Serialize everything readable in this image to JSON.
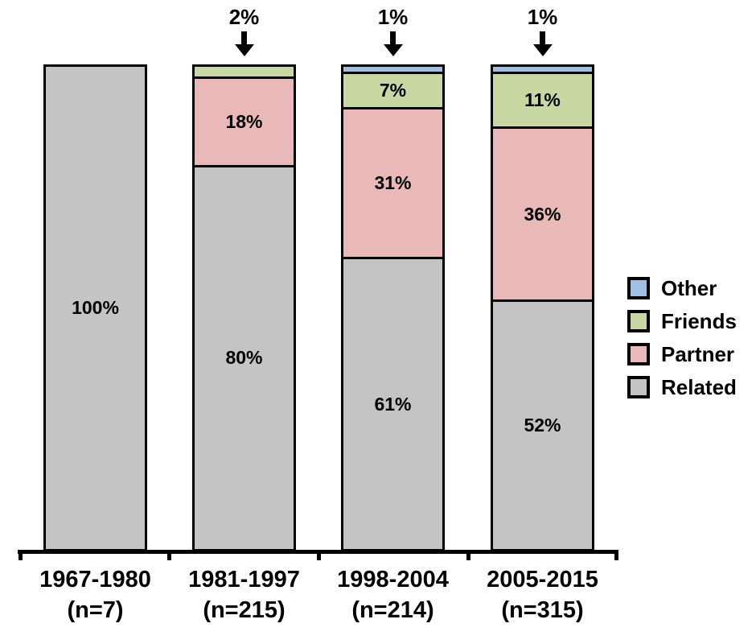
{
  "chart_data": {
    "type": "bar",
    "subtype": "stacked-percentage",
    "title": "",
    "xlabel": "",
    "ylabel": "",
    "ylim": [
      0,
      100
    ],
    "grid": false,
    "legend_position": "right",
    "categories": [
      "1967-1980",
      "1981-1997",
      "1998-2004",
      "2005-2015"
    ],
    "category_sublabels": [
      "(n=7)",
      "(n=215)",
      "(n=214)",
      "(n=315)"
    ],
    "series": [
      {
        "name": "Related",
        "color": "#c4c4c4",
        "values": [
          100,
          80,
          61,
          52
        ],
        "labels": [
          "100%",
          "80%",
          "61%",
          "52%"
        ]
      },
      {
        "name": "Partner",
        "color": "#e9b9ba",
        "values": [
          0,
          18,
          31,
          36
        ],
        "labels": [
          "",
          "18%",
          "31%",
          "36%"
        ]
      },
      {
        "name": "Friends",
        "color": "#c9d8a3",
        "values": [
          0,
          2,
          7,
          11
        ],
        "labels": [
          "",
          "",
          "7%",
          "11%"
        ]
      },
      {
        "name": "Other",
        "color": "#9fc0e4",
        "values": [
          0,
          0,
          1,
          1
        ],
        "labels": [
          "",
          "",
          "",
          ""
        ]
      }
    ],
    "annotations": [
      {
        "category_index": 1,
        "label": "2%"
      },
      {
        "category_index": 2,
        "label": "1%"
      },
      {
        "category_index": 3,
        "label": "1%"
      }
    ],
    "legend": [
      "Other",
      "Friends",
      "Partner",
      "Related"
    ]
  }
}
